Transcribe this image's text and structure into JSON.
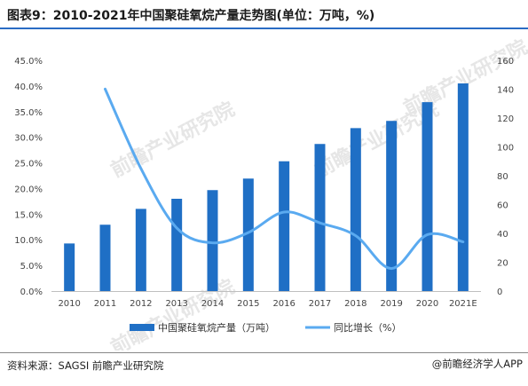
{
  "title": "图表9：2010-2021年中国聚硅氧烷产量走势图(单位：万吨，%)",
  "watermark": "前瞻产业研究院",
  "source": "资料来源：SAGSI 前瞻产业研究院",
  "brand": "@前瞻经济学人APP",
  "colors": {
    "bar": "#1f6fc5",
    "line": "#5aaaf0",
    "accent": "#2a6cc4"
  },
  "chart_data": {
    "type": "bar",
    "categories": [
      "2010",
      "2011",
      "2012",
      "2013",
      "2014",
      "2015",
      "2016",
      "2017",
      "2018",
      "2019",
      "2020",
      "2021E"
    ],
    "series": [
      {
        "name": "中国聚硅氧烷产量（万吨）",
        "type": "bar",
        "axis": "right",
        "values": [
          33,
          46,
          57,
          64,
          70,
          78,
          90,
          102,
          113,
          118,
          131,
          144
        ]
      },
      {
        "name": "同比增长（%）",
        "type": "line",
        "axis": "left",
        "values": [
          null,
          39.4,
          23.9,
          12.3,
          9.4,
          11.4,
          15.4,
          13.3,
          10.8,
          4.4,
          11.0,
          9.6
        ]
      }
    ],
    "y_left": {
      "ticks": [
        "0.0%",
        "5.0%",
        "10.0%",
        "15.0%",
        "20.0%",
        "25.0%",
        "30.0%",
        "35.0%",
        "40.0%",
        "45.0%"
      ],
      "min": 0,
      "max": 45
    },
    "y_right": {
      "ticks": [
        "0",
        "20",
        "40",
        "60",
        "80",
        "100",
        "120",
        "140",
        "160"
      ],
      "min": 0,
      "max": 160
    },
    "legend_position": "bottom-center"
  }
}
